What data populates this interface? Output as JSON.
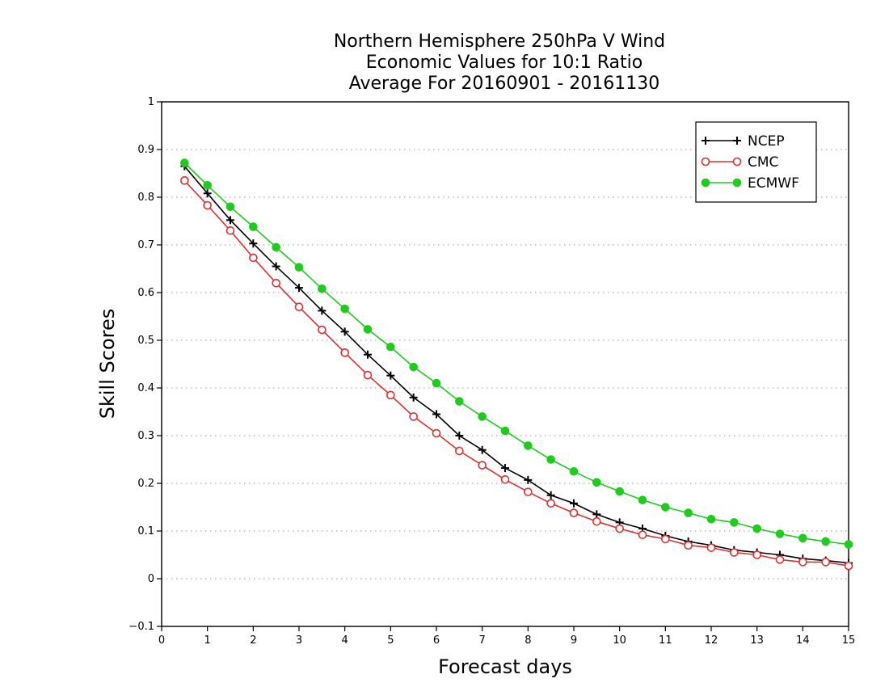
{
  "chart_data": {
    "type": "line",
    "title": [
      "Northern Hemisphere 250hPa V Wind",
      "Economic Values for 10:1 Ratio",
      "Average For 20160901 - 20161130"
    ],
    "xlabel": "Forecast days",
    "ylabel": "Skill Scores",
    "xlim": [
      0,
      15
    ],
    "ylim": [
      -0.1,
      1
    ],
    "xticks": [
      "0",
      "1",
      "2",
      "3",
      "4",
      "5",
      "6",
      "7",
      "8",
      "9",
      "10",
      "11",
      "12",
      "13",
      "14",
      "15"
    ],
    "yticks": [
      "−0.1",
      "0",
      "0.1",
      "0.2",
      "0.3",
      "0.4",
      "0.5",
      "0.6",
      "0.7",
      "0.8",
      "0.9",
      "1"
    ],
    "grid": true,
    "legend_position": "top-right",
    "x": [
      0.5,
      1,
      1.5,
      2,
      2.5,
      3,
      3.5,
      4,
      4.5,
      5,
      5.5,
      6,
      6.5,
      7,
      7.5,
      8,
      8.5,
      9,
      9.5,
      10,
      10.5,
      11,
      11.5,
      12,
      12.5,
      13,
      13.5,
      14,
      14.5,
      15
    ],
    "series": [
      {
        "name": "NCEP",
        "color": "#000000",
        "marker": "plus",
        "values": [
          0.865,
          0.808,
          0.752,
          0.703,
          0.655,
          0.61,
          0.562,
          0.518,
          0.47,
          0.426,
          0.38,
          0.345,
          0.3,
          0.27,
          0.232,
          0.207,
          0.175,
          0.158,
          0.135,
          0.118,
          0.105,
          0.09,
          0.078,
          0.07,
          0.06,
          0.055,
          0.05,
          0.042,
          0.038,
          0.033
        ]
      },
      {
        "name": "CMC",
        "color": "#e03030",
        "marker": "open-circle",
        "values": [
          0.835,
          0.783,
          0.73,
          0.673,
          0.62,
          0.57,
          0.522,
          0.474,
          0.427,
          0.385,
          0.34,
          0.305,
          0.268,
          0.238,
          0.208,
          0.182,
          0.158,
          0.138,
          0.12,
          0.105,
          0.092,
          0.083,
          0.07,
          0.065,
          0.055,
          0.05,
          0.04,
          0.035,
          0.035,
          0.027
        ]
      },
      {
        "name": "ECMWF",
        "color": "#1ecc1e",
        "marker": "filled-circle",
        "values": [
          0.872,
          0.825,
          0.78,
          0.738,
          0.695,
          0.653,
          0.608,
          0.566,
          0.523,
          0.486,
          0.444,
          0.41,
          0.372,
          0.34,
          0.31,
          0.279,
          0.25,
          0.225,
          0.202,
          0.183,
          0.165,
          0.15,
          0.138,
          0.125,
          0.118,
          0.105,
          0.094,
          0.085,
          0.078,
          0.072
        ]
      }
    ]
  }
}
